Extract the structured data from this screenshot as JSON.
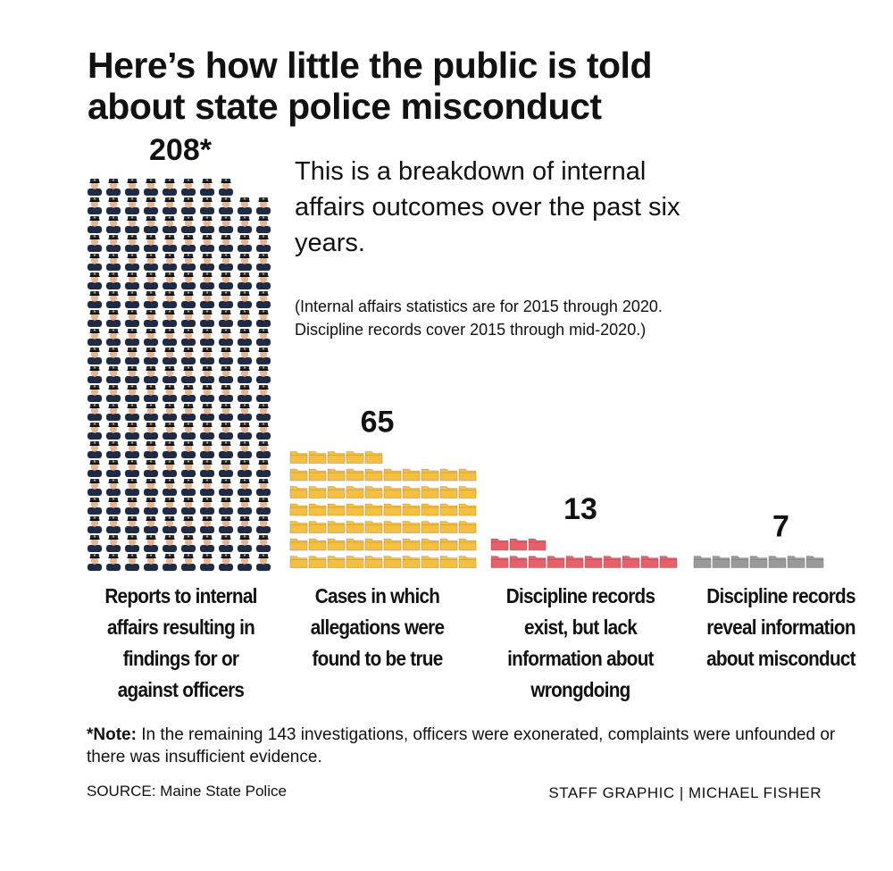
{
  "chart_data": {
    "type": "pictograph",
    "title": "Here’s how little the public is told about state police misconduct",
    "subtitle": "This is a breakdown of internal affairs outcomes over the past six years.",
    "description": "(Internal affairs statistics are for 2015 through 2020. Discipline records cover 2015 through mid-2020.)",
    "categories": [
      "Reports to internal affairs resulting in findings for or against officers",
      "Cases in which allegations were found to be true",
      "Discipline records exist, but lack information about wrongdoing",
      "Discipline records reveal information about misconduct"
    ],
    "values": [
      208,
      65,
      13,
      7
    ],
    "value_labels": [
      "208*",
      "65",
      "13",
      "7"
    ],
    "icons": [
      "officer",
      "folder",
      "folder",
      "folder"
    ],
    "colors": [
      "#1f2a44",
      "#f5c040",
      "#e8606a",
      "#9a9a9a"
    ]
  },
  "note_label": "*Note:",
  "note": "In the remaining 143 investigations, officers were exonerated, complaints were unfounded or there was insufficient evidence.",
  "source": "SOURCE: Maine State Police",
  "credit": "STAFF GRAPHIC | MICHAEL FISHER"
}
